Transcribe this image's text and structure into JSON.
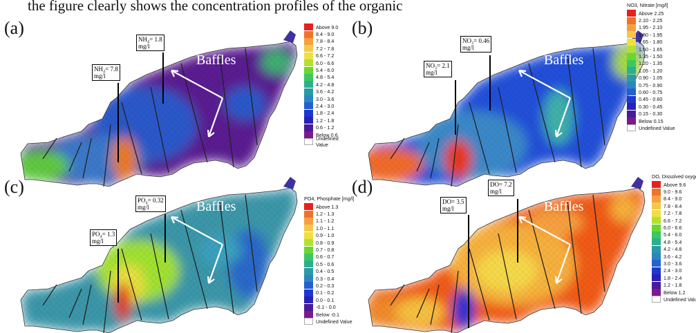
{
  "top_text": "the figure clearly shows the concentration profiles of the organic",
  "baffles_label": "Baffles",
  "panels": [
    {
      "label": "(a)",
      "legend_title": "",
      "callouts": [
        {
          "l1": "NH₄= 7.8",
          "l2": "mg/l"
        },
        {
          "l1": "NH₄= 1.8",
          "l2": "mg/l"
        }
      ],
      "legend": [
        "Above 9.0",
        "8.4 - 9.0",
        "7.8 - 8.4",
        "7.2 - 7.8",
        "6.6 - 7.2",
        "6.0 - 6.6",
        "5.4 - 6.0",
        "4.8 - 5.4",
        "4.2 - 4.8",
        "3.6 - 4.2",
        "3.0 - 3.6",
        "2.4 - 3.0",
        "1.8 - 2.4",
        "1.2 - 1.8",
        "0.6 - 1.2",
        "Below 0.6",
        "Undefined Value"
      ]
    },
    {
      "label": "(b)",
      "legend_title": "NO3, Nitrate [mg/l]",
      "callouts": [
        {
          "l1": "NO₃= 2.1",
          "l2": "mg/l"
        },
        {
          "l1": "NO₃= 0.46",
          "l2": "mg/l"
        }
      ],
      "legend": [
        "Above 2.25",
        "2.10 - 2.25",
        "1.95 - 2.10",
        "1.80 - 1.95",
        "1.65 - 1.80",
        "1.50 - 1.65",
        "1.35 - 1.50",
        "1.20 - 1.35",
        "1.05 - 1.20",
        "0.90 - 1.05",
        "0.75 - 0.90",
        "0.60 - 0.75",
        "0.45 - 0.60",
        "0.30 - 0.45",
        "0.15 - 0.30",
        "Below 0.15",
        "Undefined Value"
      ]
    },
    {
      "label": "(c)",
      "legend_title": "PO4, Phosphate [mg/l]",
      "callouts": [
        {
          "l1": "PO₄= 1.3",
          "l2": "mg/l"
        },
        {
          "l1": "PO₄= 0.32",
          "l2": "mg/l"
        }
      ],
      "legend": [
        "Above 1.3",
        "1.2 - 1.3",
        "1.1 - 1.2",
        "1.0 - 1.1",
        "0.9 - 1.0",
        "0.8 - 0.9",
        "0.7 - 0.8",
        "0.6 - 0.7",
        "0.5 - 0.6",
        "0.4 - 0.5",
        "0.3 - 0.4",
        "0.2 - 0.3",
        "0.1 - 0.2",
        "0.0 - 0.1",
        "-0.1 - 0.0",
        "Below -0.1",
        "Undefined Value"
      ]
    },
    {
      "label": "(d)",
      "legend_title": "DO, Dissolved oxygen [mg/l]",
      "callouts": [
        {
          "l1": "DO= 3.5",
          "l2": "mg/l"
        },
        {
          "l1": "DO= 7.2",
          "l2": "mg/l"
        }
      ],
      "legend": [
        "Above 9.6",
        "9.0 - 9.6",
        "8.4 - 9.0",
        "7.8 - 8.4",
        "7.2 - 7.8",
        "6.6 - 7.2",
        "6.0 - 6.6",
        "5.4 - 6.0",
        "4.8 - 5.4",
        "4.2 - 4.8",
        "3.6 - 4.2",
        "3.0 - 3.6",
        "2.4 - 3.0",
        "1.8 - 2.4",
        "1.2 - 1.8",
        "Below 1.2",
        "Undefined Value"
      ]
    }
  ],
  "colors": {
    "scale": [
      "#e8201c",
      "#f0722a",
      "#f5a040",
      "#f5c84a",
      "#eee040",
      "#b4e030",
      "#6cd630",
      "#3cc860",
      "#2ab090",
      "#2a9aa6",
      "#2a86c0",
      "#2460d0",
      "#1c38d0",
      "#2820b8",
      "#4a1a9a",
      "#7a1a8c",
      "#ffffff"
    ],
    "a": {
      "base": "#5a1a90",
      "mid": "#2c58c8",
      "mid2": "#3a78c8",
      "hot": "#e87a1a",
      "left": "#60c840"
    },
    "b": {
      "base": "#2050d8",
      "mid": "#3a88c8",
      "hot": "#e83818",
      "left": "#f06a2a",
      "right": "#40b0a8"
    },
    "c": {
      "base": "#3a96a8",
      "mid": "#2b86b6",
      "hot": "#e0301a",
      "warm": "#a0e030",
      "right": "#2a68c8"
    },
    "d": {
      "base": "#f05a18",
      "mid": "#f5b03c",
      "hot": "#1830d0",
      "warm": "#f5d84a",
      "left": "#f08a2a"
    }
  }
}
